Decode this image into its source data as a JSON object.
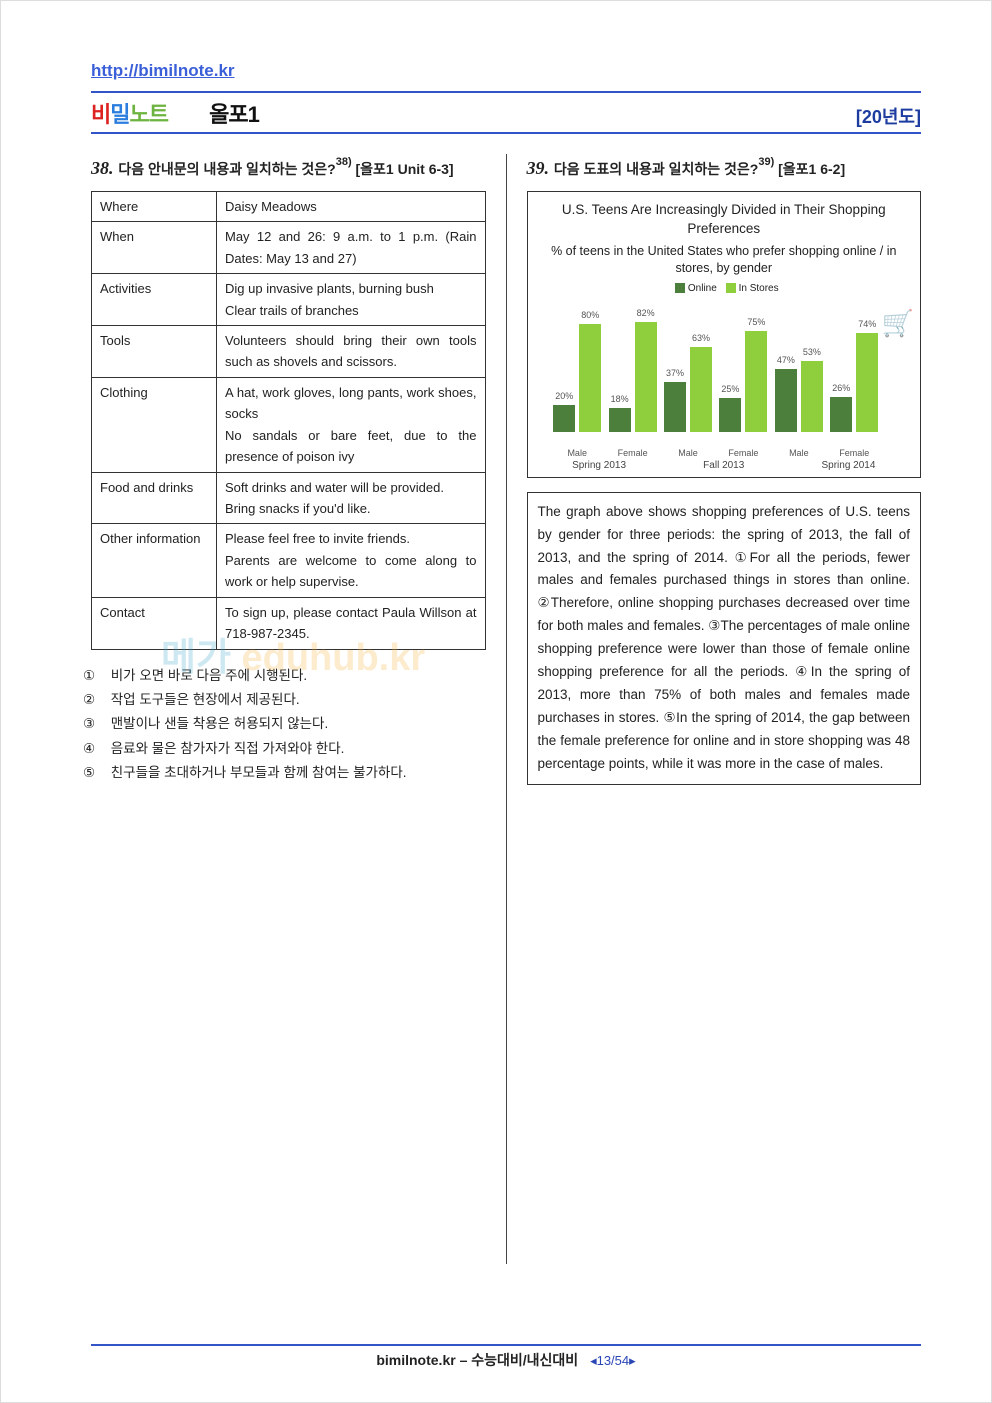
{
  "header": {
    "url": "http://bimilnote.kr",
    "brand_bi": "비",
    "brand_mil": "밀",
    "brand_no": "노",
    "brand_te": "트",
    "sub": "올포1",
    "year": "[20년도]"
  },
  "q38": {
    "num": "38.",
    "prompt": "다음 안내문의 내용과 일치하는 것은?",
    "ref": "38)",
    "src": "[올포1 Unit 6-3]",
    "table": {
      "rows": [
        {
          "label": "Where",
          "text": "Daisy Meadows"
        },
        {
          "label": "When",
          "text": "May 12 and 26: 9 a.m. to 1 p.m. (Rain Dates: May 13 and 27)"
        },
        {
          "label": "Activities",
          "text": "Dig up invasive plants, burning bush\nClear trails of branches"
        },
        {
          "label": "Tools",
          "text": "Volunteers should bring their own tools such as shovels and scissors."
        },
        {
          "label": "Clothing",
          "text": "A hat, work gloves, long pants, work shoes, socks\nNo sandals or bare feet, due to the presence of poison ivy"
        },
        {
          "label": "Food and drinks",
          "text": "Soft drinks and water will be provided.\nBring snacks if you'd like."
        },
        {
          "label": "Other information",
          "text": "Please feel free to invite friends.\nParents are welcome to come along to work or help supervise."
        },
        {
          "label": "Contact",
          "text": "To sign up, please contact Paula Willson at 718-987-2345."
        }
      ]
    },
    "choices": [
      "비가 오면 바로 다음 주에 시행된다.",
      "작업 도구들은 현장에서 제공된다.",
      "맨발이나 샌들 착용은 허용되지 않는다.",
      "음료와 물은 참가자가 직접 가져와야 한다.",
      "친구들을 초대하거나 부모들과 함께 참여는 불가하다."
    ]
  },
  "q39": {
    "num": "39.",
    "prompt": "다음 도표의 내용과 일치하는 것은?",
    "ref": "39)",
    "src": "[올포1 6-2]",
    "chart": {
      "title": "U.S. Teens Are Increasingly Divided in Their Shopping Preferences",
      "subtitle": "% of teens in the United States who prefer shopping online / in stores, by gender",
      "legend": {
        "online": "Online",
        "stores": "In Stores"
      },
      "colors": {
        "online": "#4d7f3c",
        "stores": "#8fcf3d",
        "bg": "#ffffff",
        "value_text": "#666666"
      },
      "ymax": 100,
      "periods": [
        {
          "label": "Spring 2013",
          "bars": [
            {
              "x": "Male",
              "online": 20,
              "stores": 80
            },
            {
              "x": "Female",
              "online": 18,
              "stores": 82
            }
          ]
        },
        {
          "label": "Fall 2013",
          "bars": [
            {
              "x": "Male",
              "online": 37,
              "stores": 63
            },
            {
              "x": "Female",
              "online": 25,
              "stores": 75
            }
          ]
        },
        {
          "label": "Spring 2014",
          "bars": [
            {
              "x": "Male",
              "online": 47,
              "stores": 53
            },
            {
              "x": "Female",
              "online": 26,
              "stores": 74
            }
          ]
        }
      ]
    },
    "passage": " The graph above shows shopping preferences of U.S. teens by gender for three periods: the spring of 2013, the fall of 2013, and the spring of 2014. ①For all the periods, fewer males and females purchased things in stores than online. ②Therefore, online shopping purchases decreased over time for both males and females. ③The percentages of male online shopping preference were lower than those of female online shopping preference for all the periods. ④In the spring of 2013, more than 75% of both males and females made purchases in stores. ⑤In the spring of 2014, the gap between the female preference for online and in store shopping was 48 percentage points, while it was more in the case of males."
  },
  "circled": [
    "①",
    "②",
    "③",
    "④",
    "⑤"
  ],
  "footer": {
    "text": "bimilnote.kr – 수능대비/내신대비",
    "page": "◂13/54▸"
  },
  "watermark": {
    "a": "메가",
    "b": "eduhub.kr"
  }
}
